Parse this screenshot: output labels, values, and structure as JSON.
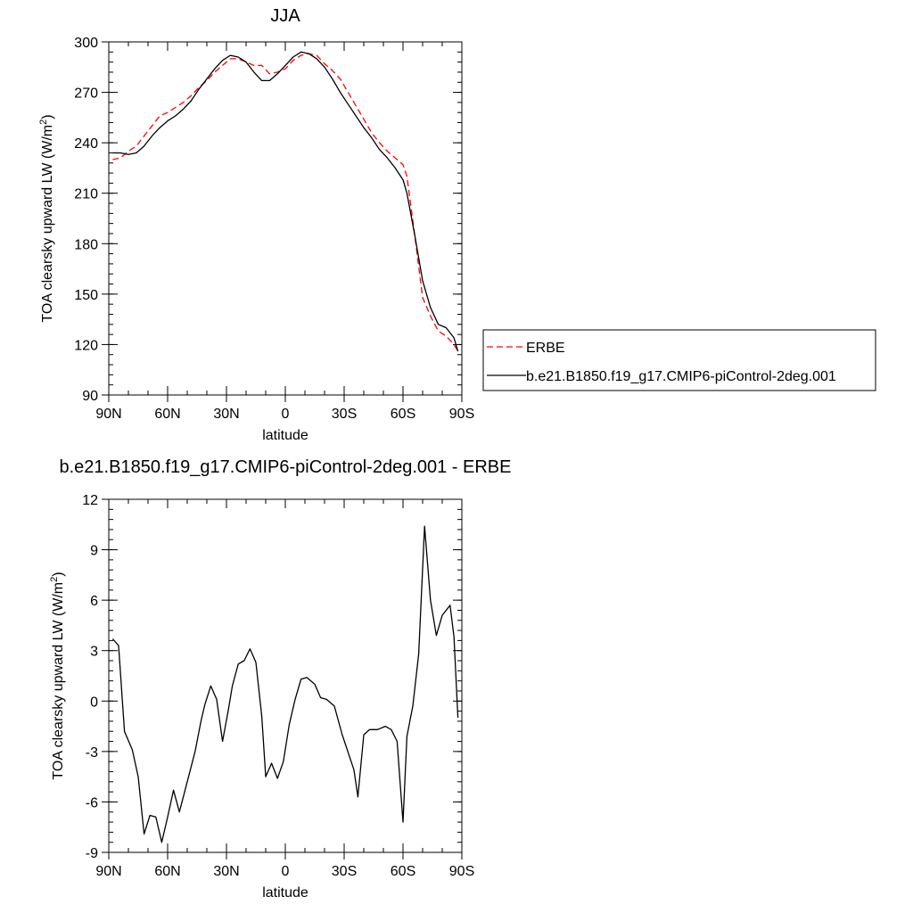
{
  "chart_data": [
    {
      "type": "line",
      "title": "JJA",
      "xlabel": "latitude",
      "ylabel": "TOA clearsky upward LW (W/m",
      "ylabel_sup": "2",
      "ylabel_close": ")",
      "xlim": [
        90,
        -90
      ],
      "ylim": [
        90,
        300
      ],
      "x_ticks": [
        90,
        60,
        30,
        0,
        -30,
        -60,
        -90
      ],
      "x_tick_labels": [
        "90N",
        "60N",
        "30N",
        "0",
        "30S",
        "60S",
        "90S"
      ],
      "y_ticks": [
        90,
        120,
        150,
        180,
        210,
        240,
        270,
        300
      ],
      "y_tick_labels": [
        "90",
        "120",
        "150",
        "180",
        "210",
        "240",
        "270",
        "300"
      ],
      "legend": "right",
      "series": [
        {
          "name": "ERBE",
          "color": "#ff0000",
          "dash": true,
          "x": [
            88,
            84,
            80,
            76,
            72,
            68,
            64,
            60,
            56,
            52,
            48,
            44,
            40,
            36,
            32,
            28,
            24,
            20,
            16,
            12,
            8,
            4,
            0,
            -4,
            -8,
            -12,
            -16,
            -20,
            -24,
            -28,
            -32,
            -36,
            -40,
            -44,
            -48,
            -52,
            -56,
            -60,
            -62,
            -66,
            -70,
            -74,
            -78,
            -82,
            -86,
            -88
          ],
          "y": [
            230,
            231,
            235,
            238,
            244,
            250,
            256,
            258,
            261,
            264,
            268,
            273,
            277,
            282,
            286,
            290,
            290,
            288,
            286,
            286,
            281,
            282,
            284,
            289,
            292,
            293,
            292,
            287,
            283,
            278,
            270,
            262,
            254,
            246,
            240,
            235,
            231,
            227,
            220,
            185,
            148,
            137,
            128,
            125,
            120,
            116
          ]
        },
        {
          "name": "b.e21.B1850.f19_g17.CMIP6-piControl-2deg.001",
          "color": "#000000",
          "dash": false,
          "x": [
            88,
            84,
            80,
            76,
            72,
            68,
            64,
            60,
            56,
            52,
            48,
            44,
            40,
            36,
            32,
            28,
            24,
            20,
            16,
            12,
            8,
            4,
            0,
            -4,
            -8,
            -12,
            -16,
            -20,
            -24,
            -28,
            -32,
            -36,
            -40,
            -44,
            -48,
            -52,
            -56,
            -60,
            -62,
            -66,
            -70,
            -74,
            -78,
            -82,
            -86,
            -88
          ],
          "y": [
            234,
            234,
            233,
            234,
            238,
            244,
            249,
            253,
            256,
            260,
            265,
            272,
            278,
            284,
            289,
            292,
            291,
            288,
            282,
            277,
            277,
            281,
            286,
            291,
            294,
            293,
            290,
            285,
            278,
            270,
            263,
            256,
            249,
            243,
            236,
            231,
            225,
            218,
            210,
            185,
            158,
            142,
            132,
            130,
            124,
            116
          ]
        }
      ]
    },
    {
      "type": "line",
      "title": "b.e21.B1850.f19_g17.CMIP6-piControl-2deg.001 - ERBE",
      "xlabel": "latitude",
      "ylabel": "TOA clearsky upward LW (W/m",
      "ylabel_sup": "2",
      "ylabel_close": ")",
      "xlim": [
        90,
        -90
      ],
      "ylim": [
        -9,
        12
      ],
      "x_ticks": [
        90,
        60,
        30,
        0,
        -30,
        -60,
        -90
      ],
      "x_tick_labels": [
        "90N",
        "60N",
        "30N",
        "0",
        "30S",
        "60S",
        "90S"
      ],
      "y_ticks": [
        -9,
        -6,
        -3,
        0,
        3,
        6,
        9,
        12
      ],
      "y_tick_labels": [
        "-9",
        "-6",
        "-3",
        "0",
        "3",
        "6",
        "9",
        "12"
      ],
      "series": [
        {
          "color": "#000000",
          "dash": false,
          "x": [
            88,
            85,
            82,
            78,
            75,
            72,
            69,
            66,
            63,
            60,
            57,
            54,
            50,
            46,
            43,
            41,
            38,
            35,
            32,
            29,
            27,
            24,
            21,
            18,
            15,
            12,
            10,
            7,
            4,
            1,
            -2,
            -5,
            -8,
            -11,
            -15,
            -18,
            -21,
            -25,
            -29,
            -35,
            -37,
            -40,
            -43,
            -47,
            -51,
            -54,
            -57,
            -60,
            -62,
            -65,
            -68,
            -71,
            -74,
            -77,
            -80,
            -84,
            -86,
            -88
          ],
          "y": [
            3.7,
            3.3,
            -1.8,
            -2.9,
            -4.5,
            -7.9,
            -6.8,
            -6.9,
            -8.4,
            -6.9,
            -5.3,
            -6.6,
            -4.8,
            -3.0,
            -1.2,
            -0.2,
            0.9,
            0.1,
            -2.4,
            -0.5,
            0.9,
            2.2,
            2.4,
            3.1,
            2.3,
            -0.9,
            -4.5,
            -3.7,
            -4.6,
            -3.6,
            -1.4,
            0.1,
            1.3,
            1.4,
            1.0,
            0.2,
            0.1,
            -0.3,
            -2.0,
            -4.1,
            -5.7,
            -2.0,
            -1.7,
            -1.7,
            -1.5,
            -1.7,
            -2.4,
            -7.2,
            -2.1,
            -0.3,
            2.8,
            10.4,
            6.0,
            3.9,
            5.1,
            5.7,
            3.8,
            -1.0
          ]
        }
      ]
    }
  ]
}
